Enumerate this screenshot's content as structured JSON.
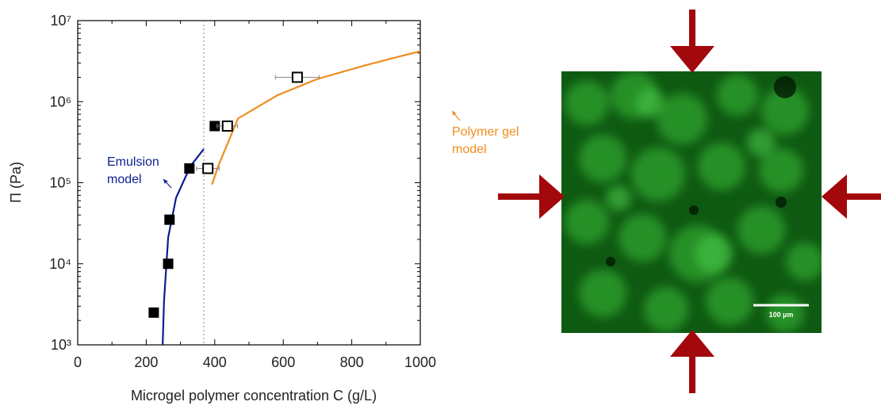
{
  "chart_data": {
    "type": "scatter",
    "xlabel": "Microgel polymer concentration C (g/L)",
    "ylabel": "Π (Pa)",
    "xlim": [
      0,
      1000
    ],
    "xticks": [
      0,
      200,
      400,
      600,
      800,
      1000
    ],
    "ylim": [
      1000,
      10000000
    ],
    "log_y": true,
    "yticks": [
      {
        "value": 1000,
        "label": "10³"
      },
      {
        "value": 10000,
        "label": "10⁴"
      },
      {
        "value": 100000,
        "label": "10⁵"
      },
      {
        "value": 1000000,
        "label": "10⁶"
      },
      {
        "value": 10000000,
        "label": "10⁷"
      }
    ],
    "reference_line_x": 368,
    "series": [
      {
        "type": "scatter",
        "marker": "filled-square",
        "color": "#000000",
        "x": [
          222,
          264,
          268,
          326,
          400
        ],
        "values": [
          2500,
          10000,
          35000,
          150000,
          500000
        ]
      },
      {
        "type": "scatter",
        "marker": "open-square",
        "color": "#000000",
        "x": [
          380,
          437,
          641
        ],
        "values": [
          150000,
          500000,
          2000000
        ],
        "x_errors": [
          33,
          30,
          64
        ]
      },
      {
        "type": "line",
        "color": "#0a1f8f",
        "x": [
          248,
          252,
          264,
          287,
          329,
          368
        ],
        "values": [
          1000,
          3500,
          21000,
          65000,
          160000,
          260000
        ]
      },
      {
        "type": "line",
        "color": "#f08c1e",
        "x": [
          392,
          410,
          468,
          583,
          699,
          838,
          1000
        ],
        "values": [
          95000,
          160000,
          620000,
          1200000,
          1900000,
          2800000,
          4200000
        ]
      }
    ],
    "annotations": [
      {
        "lines": [
          "Emulsion",
          "model"
        ],
        "color": "#0a1f8f"
      },
      {
        "lines": [
          "Polymer gel",
          "model"
        ],
        "color": "#f08c1e"
      }
    ]
  },
  "image": {
    "scale_bar": "100 µm"
  }
}
